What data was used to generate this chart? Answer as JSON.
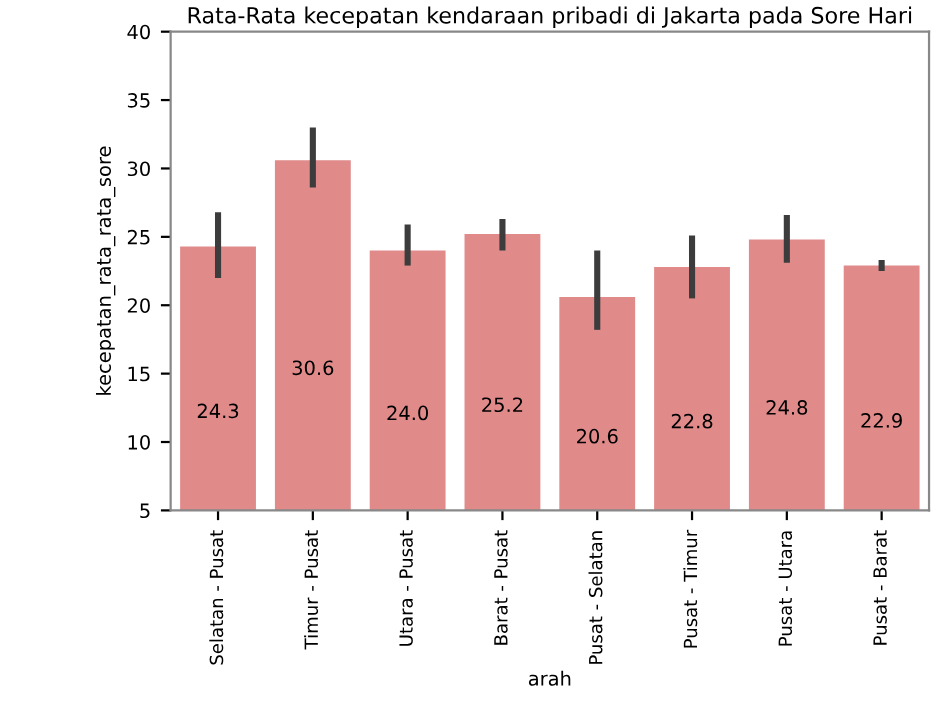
{
  "chart_data": {
    "type": "bar",
    "title": "Rata-Rata kecepatan kendaraan pribadi di Jakarta pada Sore Hari",
    "xlabel": "arah",
    "ylabel": "kecepatan_rata_rata_sore",
    "categories": [
      "Selatan - Pusat",
      "Timur - Pusat",
      "Utara - Pusat",
      "Barat - Pusat",
      "Pusat - Selatan",
      "Pusat - Timur",
      "Pusat - Utara",
      "Pusat - Barat"
    ],
    "values": [
      24.3,
      30.6,
      24.0,
      25.2,
      20.6,
      22.8,
      24.8,
      22.9
    ],
    "errors": [
      [
        22.0,
        26.8
      ],
      [
        28.6,
        33.0
      ],
      [
        22.9,
        25.9
      ],
      [
        24.0,
        26.3
      ],
      [
        18.2,
        24.0
      ],
      [
        20.5,
        25.1
      ],
      [
        23.1,
        26.6
      ],
      [
        22.5,
        23.3
      ]
    ],
    "value_labels": [
      "24.3",
      "30.6",
      "24.0",
      "25.2",
      "20.6",
      "22.8",
      "24.8",
      "22.9"
    ],
    "color": "#e08a8a",
    "ylim": [
      5,
      40
    ],
    "yticks": [
      5,
      10,
      15,
      20,
      25,
      30,
      35,
      40
    ],
    "grid": false,
    "legend": false
  }
}
